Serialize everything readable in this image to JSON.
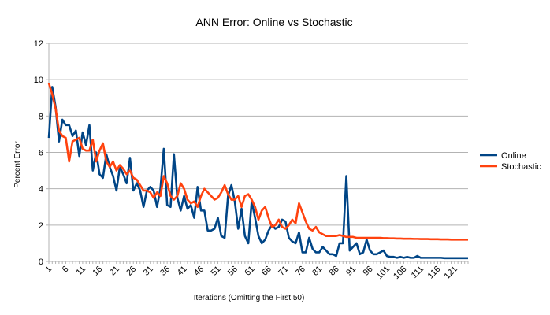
{
  "chart_data": {
    "type": "line",
    "title": "ANN Error: Online vs Stochastic",
    "xlabel": "Iterations (Omitting the First 50)",
    "ylabel": "Percent Error",
    "ylim": [
      0,
      12
    ],
    "yticks": [
      0,
      2,
      4,
      6,
      8,
      10,
      12
    ],
    "xlim": [
      1,
      125
    ],
    "xticks": [
      1,
      6,
      11,
      16,
      21,
      26,
      31,
      36,
      41,
      46,
      51,
      56,
      61,
      66,
      71,
      76,
      81,
      86,
      91,
      96,
      101,
      106,
      111,
      116,
      121
    ],
    "grid": "horizontal",
    "legend_position": "right",
    "series": [
      {
        "name": "Online",
        "color": "#004586",
        "values": [
          6.8,
          9.6,
          8.5,
          6.6,
          7.8,
          7.5,
          7.5,
          6.9,
          7.2,
          5.8,
          7.1,
          6.4,
          7.5,
          5.0,
          6.0,
          4.8,
          4.6,
          5.9,
          5.2,
          4.7,
          3.9,
          5.2,
          4.8,
          4.3,
          5.7,
          3.9,
          4.3,
          3.9,
          3.0,
          3.9,
          4.1,
          3.9,
          3.0,
          4.0,
          6.2,
          3.1,
          3.0,
          5.9,
          3.5,
          2.8,
          3.6,
          2.9,
          3.1,
          2.4,
          4.1,
          2.8,
          2.8,
          1.7,
          1.7,
          1.8,
          2.4,
          1.4,
          1.3,
          3.6,
          4.2,
          3.3,
          1.8,
          2.9,
          1.4,
          1.0,
          3.3,
          2.4,
          1.4,
          1.0,
          1.2,
          1.7,
          2.0,
          1.8,
          1.9,
          2.3,
          2.2,
          1.3,
          1.1,
          1.0,
          1.6,
          0.5,
          0.5,
          1.3,
          0.7,
          0.5,
          0.5,
          0.8,
          0.6,
          0.4,
          0.4,
          0.3,
          1.0,
          1.0,
          4.7,
          0.6,
          0.8,
          1.0,
          0.4,
          0.5,
          1.2,
          0.6,
          0.4,
          0.4,
          0.5,
          0.6,
          0.3,
          0.25,
          0.25,
          0.2,
          0.25,
          0.2,
          0.25,
          0.2,
          0.2,
          0.3,
          0.2,
          0.2,
          0.2,
          0.2,
          0.2,
          0.2,
          0.2,
          0.18,
          0.18,
          0.18,
          0.18,
          0.18,
          0.18,
          0.18,
          0.18
        ]
      },
      {
        "name": "Stochastic",
        "color": "#ff420e",
        "values": [
          9.8,
          9.2,
          8.4,
          7.2,
          6.9,
          6.8,
          5.5,
          6.6,
          6.7,
          6.8,
          6.2,
          6.1,
          6.1,
          6.7,
          5.5,
          6.1,
          6.5,
          5.5,
          5.2,
          5.5,
          5.0,
          5.3,
          5.1,
          4.8,
          5.0,
          4.6,
          4.5,
          4.2,
          3.9,
          3.9,
          3.8,
          3.5,
          3.8,
          3.6,
          4.7,
          4.3,
          3.6,
          3.4,
          3.6,
          4.3,
          4.0,
          3.4,
          3.2,
          3.3,
          3.0,
          3.6,
          4.0,
          3.8,
          3.6,
          3.4,
          3.5,
          3.8,
          4.2,
          3.7,
          3.4,
          3.4,
          3.6,
          3.0,
          3.6,
          3.7,
          3.4,
          3.0,
          2.3,
          2.8,
          3.0,
          2.4,
          1.9,
          2.0,
          2.3,
          1.9,
          1.8,
          2.0,
          2.3,
          2.1,
          3.2,
          2.7,
          2.2,
          1.8,
          1.7,
          1.9,
          1.6,
          1.5,
          1.4,
          1.4,
          1.4,
          1.4,
          1.45,
          1.4,
          1.35,
          1.35,
          1.35,
          1.3,
          1.3,
          1.3,
          1.3,
          1.3,
          1.3,
          1.3,
          1.3,
          1.28,
          1.28,
          1.27,
          1.27,
          1.26,
          1.26,
          1.25,
          1.25,
          1.25,
          1.24,
          1.24,
          1.23,
          1.23,
          1.23,
          1.22,
          1.22,
          1.22,
          1.21,
          1.21,
          1.21,
          1.2,
          1.2,
          1.2,
          1.2,
          1.2,
          1.2
        ]
      }
    ]
  }
}
